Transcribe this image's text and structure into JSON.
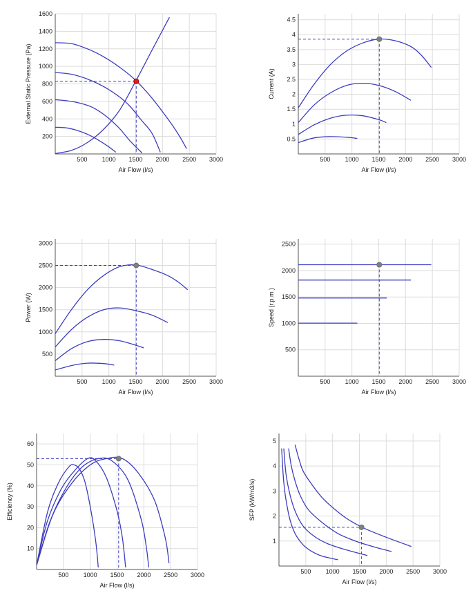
{
  "chart_data": [
    {
      "id": "pressure",
      "type": "line",
      "xlabel": "Air Flow (l/s)",
      "ylabel": "External Static Pressure (Pa)",
      "xlim": [
        0,
        3000
      ],
      "ylim": [
        0,
        1600
      ],
      "xticks": [
        500,
        1000,
        1500,
        2000,
        2500,
        3000
      ],
      "yticks": [
        200,
        400,
        600,
        800,
        1000,
        1200,
        1400,
        1600
      ],
      "grid": true,
      "series": [
        {
          "points": [
            [
              0,
              1270
            ],
            [
              300,
              1260
            ],
            [
              600,
              1200
            ],
            [
              900,
              1110
            ],
            [
              1200,
              990
            ],
            [
              1500,
              840
            ],
            [
              1800,
              640
            ],
            [
              2100,
              400
            ],
            [
              2300,
              220
            ],
            [
              2450,
              60
            ]
          ]
        },
        {
          "points": [
            [
              0,
              930
            ],
            [
              300,
              910
            ],
            [
              600,
              855
            ],
            [
              900,
              770
            ],
            [
              1200,
              650
            ],
            [
              1400,
              540
            ],
            [
              1600,
              390
            ],
            [
              1800,
              240
            ],
            [
              1960,
              20
            ]
          ]
        },
        {
          "points": [
            [
              0,
              620
            ],
            [
              300,
              600
            ],
            [
              600,
              555
            ],
            [
              800,
              495
            ],
            [
              1000,
              405
            ],
            [
              1200,
              290
            ],
            [
              1400,
              145
            ],
            [
              1620,
              10
            ]
          ]
        },
        {
          "points": [
            [
              0,
              305
            ],
            [
              200,
              298
            ],
            [
              400,
              270
            ],
            [
              600,
              225
            ],
            [
              800,
              160
            ],
            [
              1000,
              80
            ],
            [
              1130,
              20
            ]
          ]
        },
        {
          "points": [
            [
              0,
              5
            ],
            [
              300,
              40
            ],
            [
              600,
              130
            ],
            [
              900,
              280
            ],
            [
              1200,
              500
            ],
            [
              1500,
              830
            ],
            [
              1800,
              1180
            ],
            [
              2000,
              1410
            ],
            [
              2130,
              1560
            ]
          ]
        }
      ],
      "operating_point": {
        "x": 1510,
        "y": 830,
        "color": "#e01c1c"
      }
    },
    {
      "id": "current",
      "type": "line",
      "xlabel": "Air Flow (l/s)",
      "ylabel": "Current (A)",
      "xlim": [
        0,
        3000
      ],
      "ylim": [
        0,
        4.7
      ],
      "xticks": [
        500,
        1000,
        1500,
        2000,
        2500,
        3000
      ],
      "yticks": [
        0.5,
        1,
        1.5,
        2,
        2.5,
        3,
        3.5,
        4,
        4.5
      ],
      "grid": true,
      "series": [
        {
          "points": [
            [
              0,
              1.55
            ],
            [
              300,
              2.35
            ],
            [
              600,
              3.0
            ],
            [
              900,
              3.45
            ],
            [
              1200,
              3.72
            ],
            [
              1500,
              3.85
            ],
            [
              1800,
              3.8
            ],
            [
              2100,
              3.6
            ],
            [
              2300,
              3.3
            ],
            [
              2480,
              2.9
            ]
          ]
        },
        {
          "points": [
            [
              0,
              1.05
            ],
            [
              300,
              1.65
            ],
            [
              600,
              2.05
            ],
            [
              900,
              2.3
            ],
            [
              1200,
              2.37
            ],
            [
              1500,
              2.3
            ],
            [
              1800,
              2.1
            ],
            [
              2100,
              1.8
            ]
          ]
        },
        {
          "points": [
            [
              0,
              0.65
            ],
            [
              300,
              0.98
            ],
            [
              600,
              1.2
            ],
            [
              900,
              1.3
            ],
            [
              1200,
              1.28
            ],
            [
              1500,
              1.15
            ],
            [
              1640,
              1.05
            ]
          ]
        },
        {
          "points": [
            [
              0,
              0.38
            ],
            [
              300,
              0.54
            ],
            [
              600,
              0.58
            ],
            [
              900,
              0.56
            ],
            [
              1100,
              0.52
            ]
          ]
        }
      ],
      "operating_point": {
        "x": 1510,
        "y": 3.85,
        "color": "#808080"
      }
    },
    {
      "id": "power",
      "type": "line",
      "xlabel": "Air Flow (l/s)",
      "ylabel": "Power (W)",
      "xlim": [
        0,
        3000
      ],
      "ylim": [
        0,
        3100
      ],
      "xticks": [
        500,
        1000,
        1500,
        2000,
        2500,
        3000
      ],
      "yticks": [
        500,
        1000,
        1500,
        2000,
        2500,
        3000
      ],
      "grid": true,
      "series": [
        {
          "points": [
            [
              0,
              960
            ],
            [
              300,
              1500
            ],
            [
              600,
              1950
            ],
            [
              900,
              2270
            ],
            [
              1200,
              2470
            ],
            [
              1500,
              2510
            ],
            [
              1800,
              2410
            ],
            [
              2100,
              2270
            ],
            [
              2300,
              2120
            ],
            [
              2470,
              1950
            ]
          ]
        },
        {
          "points": [
            [
              0,
              660
            ],
            [
              300,
              1050
            ],
            [
              600,
              1330
            ],
            [
              900,
              1500
            ],
            [
              1200,
              1540
            ],
            [
              1500,
              1480
            ],
            [
              1800,
              1380
            ],
            [
              2100,
              1210
            ]
          ]
        },
        {
          "points": [
            [
              0,
              350
            ],
            [
              300,
              620
            ],
            [
              600,
              780
            ],
            [
              900,
              830
            ],
            [
              1200,
              800
            ],
            [
              1500,
              700
            ],
            [
              1650,
              640
            ]
          ]
        },
        {
          "points": [
            [
              0,
              140
            ],
            [
              300,
              240
            ],
            [
              600,
              295
            ],
            [
              900,
              285
            ],
            [
              1100,
              250
            ]
          ]
        }
      ],
      "operating_point": {
        "x": 1510,
        "y": 2500,
        "color": "#808080"
      }
    },
    {
      "id": "speed",
      "type": "line",
      "xlabel": "Air Flow (l/s)",
      "ylabel": "Speed (r.p.m.)",
      "xlim": [
        0,
        3000
      ],
      "ylim": [
        0,
        2600
      ],
      "xticks": [
        500,
        1000,
        1500,
        2000,
        2500,
        3000
      ],
      "yticks": [
        500,
        1000,
        1500,
        2000,
        2500
      ],
      "grid": true,
      "series": [
        {
          "points": [
            [
              0,
              2110
            ],
            [
              2480,
              2110
            ]
          ]
        },
        {
          "points": [
            [
              0,
              1820
            ],
            [
              2100,
              1820
            ]
          ]
        },
        {
          "points": [
            [
              0,
              1480
            ],
            [
              1650,
              1480
            ]
          ]
        },
        {
          "points": [
            [
              0,
              1005
            ],
            [
              1100,
              1005
            ]
          ]
        }
      ],
      "operating_point": {
        "x": 1510,
        "y": 2110,
        "color": "#808080"
      }
    },
    {
      "id": "efficiency",
      "type": "line",
      "xlabel": "Air Flow (l/s)",
      "ylabel": "Efficiency (%)",
      "xlim": [
        0,
        3000
      ],
      "ylim": [
        0,
        65
      ],
      "xticks": [
        500,
        1000,
        1500,
        2000,
        2500,
        3000
      ],
      "yticks": [
        10,
        20,
        30,
        40,
        50,
        60
      ],
      "grid": true,
      "series": [
        {
          "points": [
            [
              0,
              2
            ],
            [
              200,
              27
            ],
            [
              400,
              41
            ],
            [
              600,
              49
            ],
            [
              700,
              50
            ],
            [
              800,
              48
            ],
            [
              900,
              42
            ],
            [
              1000,
              30
            ],
            [
              1100,
              14
            ],
            [
              1150,
              1
            ]
          ]
        },
        {
          "points": [
            [
              0,
              2
            ],
            [
              200,
              23
            ],
            [
              450,
              38
            ],
            [
              700,
              47
            ],
            [
              950,
              53
            ],
            [
              1100,
              52
            ],
            [
              1300,
              44
            ],
            [
              1500,
              28
            ],
            [
              1600,
              15
            ],
            [
              1660,
              1
            ]
          ]
        },
        {
          "points": [
            [
              0,
              2
            ],
            [
              250,
              23
            ],
            [
              550,
              39
            ],
            [
              850,
              49
            ],
            [
              1150,
              53
            ],
            [
              1400,
              52
            ],
            [
              1700,
              43
            ],
            [
              1950,
              24
            ],
            [
              2050,
              10
            ],
            [
              2090,
              1
            ]
          ]
        },
        {
          "points": [
            [
              0,
              2
            ],
            [
              300,
              26
            ],
            [
              650,
              41
            ],
            [
              1000,
              50
            ],
            [
              1300,
              53
            ],
            [
              1600,
              53
            ],
            [
              1900,
              46
            ],
            [
              2200,
              33
            ],
            [
              2400,
              15
            ],
            [
              2470,
              3
            ]
          ]
        }
      ],
      "operating_point": {
        "x": 1530,
        "y": 53,
        "color": "#808080"
      }
    },
    {
      "id": "sfp",
      "type": "line",
      "xlabel": "Air Flow (l/s)",
      "ylabel": "SFP (kW/m3/s)",
      "xlim": [
        0,
        3000
      ],
      "ylim": [
        0,
        5.3
      ],
      "xticks": [
        500,
        1000,
        1500,
        2000,
        2500,
        3000
      ],
      "yticks": [
        1,
        2,
        3,
        4,
        5
      ],
      "grid": true,
      "series": [
        {
          "points": [
            [
              50,
              4.7
            ],
            [
              80,
              3.6
            ],
            [
              120,
              2.8
            ],
            [
              200,
              1.9
            ],
            [
              300,
              1.3
            ],
            [
              450,
              0.85
            ],
            [
              600,
              0.6
            ],
            [
              800,
              0.4
            ],
            [
              1100,
              0.25
            ]
          ]
        },
        {
          "points": [
            [
              90,
              4.7
            ],
            [
              130,
              3.7
            ],
            [
              200,
              2.9
            ],
            [
              300,
              2.2
            ],
            [
              450,
              1.6
            ],
            [
              650,
              1.2
            ],
            [
              900,
              0.9
            ],
            [
              1200,
              0.68
            ],
            [
              1650,
              0.42
            ]
          ]
        },
        {
          "points": [
            [
              180,
              4.7
            ],
            [
              230,
              4.0
            ],
            [
              300,
              3.4
            ],
            [
              400,
              2.8
            ],
            [
              550,
              2.25
            ],
            [
              800,
              1.75
            ],
            [
              1100,
              1.3
            ],
            [
              1450,
              0.98
            ],
            [
              1750,
              0.78
            ],
            [
              2100,
              0.58
            ]
          ]
        },
        {
          "points": [
            [
              300,
              4.85
            ],
            [
              370,
              4.3
            ],
            [
              450,
              3.8
            ],
            [
              600,
              3.3
            ],
            [
              800,
              2.75
            ],
            [
              1050,
              2.25
            ],
            [
              1300,
              1.85
            ],
            [
              1600,
              1.5
            ],
            [
              2000,
              1.15
            ],
            [
              2470,
              0.78
            ]
          ]
        }
      ],
      "operating_point": {
        "x": 1540,
        "y": 1.55,
        "color": "#808080"
      }
    }
  ]
}
